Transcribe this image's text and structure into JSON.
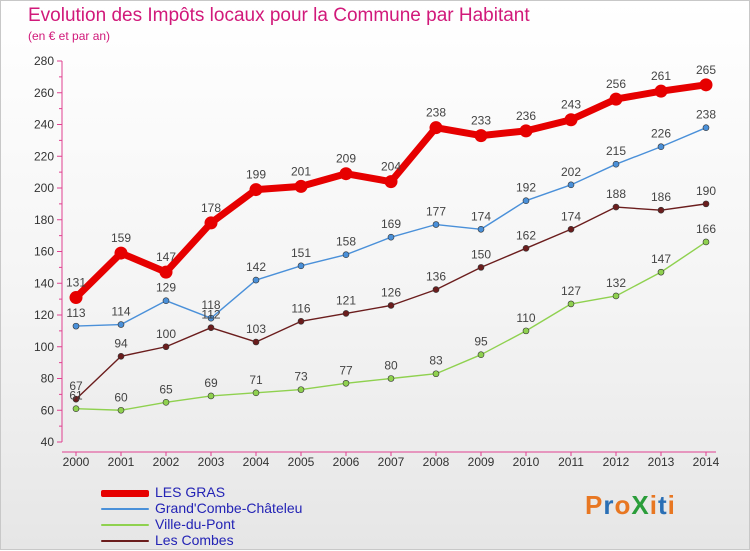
{
  "chart_data": {
    "type": "line",
    "title": "Evolution des Impôts locaux pour la Commune par Habitant",
    "subtitle": "(en € et par an)",
    "x": [
      "2000",
      "2001",
      "2002",
      "2003",
      "2004",
      "2005",
      "2006",
      "2007",
      "2008",
      "2009",
      "2010",
      "2011",
      "2012",
      "2013",
      "2014"
    ],
    "ylim": [
      40,
      280
    ],
    "yticks": [
      40,
      60,
      80,
      100,
      120,
      140,
      160,
      180,
      200,
      220,
      240,
      260,
      280
    ],
    "grid": false,
    "legend_position": "bottom-left",
    "series": [
      {
        "name": "Les Combes",
        "color": "#6b1d1d",
        "values": [
          67,
          94,
          100,
          112,
          103,
          116,
          121,
          126,
          136,
          150,
          162,
          174,
          188,
          186,
          190
        ]
      },
      {
        "name": "Ville-du-Pont",
        "color": "#8fd14f",
        "values": [
          61,
          60,
          65,
          69,
          71,
          73,
          77,
          80,
          83,
          95,
          110,
          127,
          132,
          147,
          166
        ]
      },
      {
        "name": "Grand'Combe-Châteleu",
        "color": "#4a90d9",
        "values": [
          113,
          114,
          129,
          118,
          142,
          151,
          158,
          169,
          177,
          174,
          192,
          202,
          215,
          226,
          238
        ]
      },
      {
        "name": "LES GRAS",
        "color": "#e60000",
        "values": [
          131,
          159,
          147,
          178,
          199,
          201,
          209,
          204,
          238,
          233,
          236,
          243,
          256,
          261,
          265
        ]
      }
    ],
    "legend_order": [
      "LES GRAS",
      "Grand'Combe-Châteleu",
      "Ville-du-Pont",
      "Les Combes"
    ]
  },
  "logo": {
    "text": "ProXiti",
    "colors": [
      "#e87722",
      "#2a6fb5",
      "#e87722",
      "#2a9d3a",
      "#e87722",
      "#2a6fb5",
      "#e87722"
    ]
  }
}
